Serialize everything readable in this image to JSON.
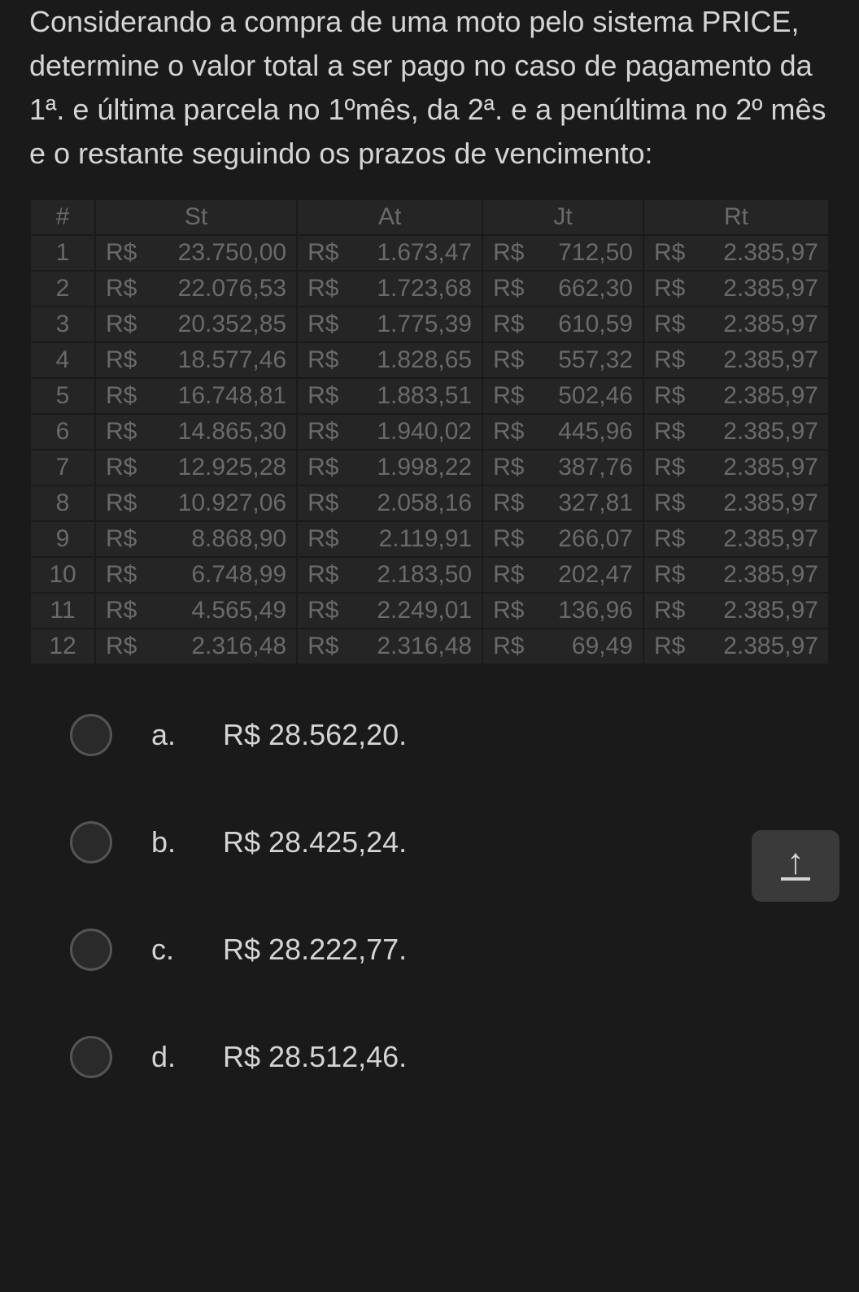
{
  "question": "Considerando a compra de uma moto pelo sistema PRICE, determine o valor total a ser pago no caso de pagamento da 1ª. e última parcela no 1ºmês, da 2ª. e a penúltima no 2º mês e o restante seguindo os prazos de vencimento:",
  "table": {
    "headers": [
      "#",
      "St",
      "At",
      "Jt",
      "Rt"
    ],
    "currency_prefix": "R$",
    "rows": [
      {
        "n": "1",
        "st": "23.750,00",
        "at": "1.673,47",
        "jt": "712,50",
        "rt": "2.385,97"
      },
      {
        "n": "2",
        "st": "22.076,53",
        "at": "1.723,68",
        "jt": "662,30",
        "rt": "2.385,97"
      },
      {
        "n": "3",
        "st": "20.352,85",
        "at": "1.775,39",
        "jt": "610,59",
        "rt": "2.385,97"
      },
      {
        "n": "4",
        "st": "18.577,46",
        "at": "1.828,65",
        "jt": "557,32",
        "rt": "2.385,97"
      },
      {
        "n": "5",
        "st": "16.748,81",
        "at": "1.883,51",
        "jt": "502,46",
        "rt": "2.385,97"
      },
      {
        "n": "6",
        "st": "14.865,30",
        "at": "1.940,02",
        "jt": "445,96",
        "rt": "2.385,97"
      },
      {
        "n": "7",
        "st": "12.925,28",
        "at": "1.998,22",
        "jt": "387,76",
        "rt": "2.385,97"
      },
      {
        "n": "8",
        "st": "10.927,06",
        "at": "2.058,16",
        "jt": "327,81",
        "rt": "2.385,97"
      },
      {
        "n": "9",
        "st": "8.868,90",
        "at": "2.119,91",
        "jt": "266,07",
        "rt": "2.385,97"
      },
      {
        "n": "10",
        "st": "6.748,99",
        "at": "2.183,50",
        "jt": "202,47",
        "rt": "2.385,97"
      },
      {
        "n": "11",
        "st": "4.565,49",
        "at": "2.249,01",
        "jt": "136,96",
        "rt": "2.385,97"
      },
      {
        "n": "12",
        "st": "2.316,48",
        "at": "2.316,48",
        "jt": "69,49",
        "rt": "2.385,97"
      }
    ],
    "colors": {
      "cell_bg": "#252525",
      "border": "#1a1a1a",
      "text": "#6a6a6a"
    }
  },
  "options": [
    {
      "letter": "a.",
      "text": "R$ 28.562,20."
    },
    {
      "letter": "b.",
      "text": "R$ 28.425,24."
    },
    {
      "letter": "c.",
      "text": "R$ 28.222,77."
    },
    {
      "letter": "d.",
      "text": "R$ 28.512,46."
    }
  ],
  "colors": {
    "page_bg": "#1a1a1a",
    "text": "#d4d4d4",
    "radio_border": "#555",
    "radio_bg": "#2a2a2a",
    "scroll_btn_bg": "#3a3a3a"
  }
}
